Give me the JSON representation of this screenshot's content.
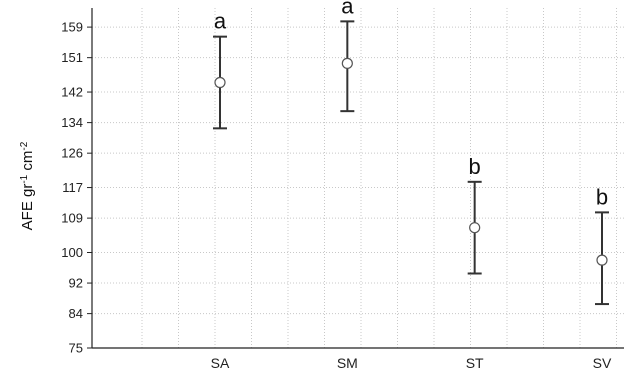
{
  "chart_data": {
    "type": "scatter",
    "subtype": "mean-with-error-bars",
    "title": "",
    "xlabel": "",
    "ylabel": {
      "base": "AFE gr",
      "sup1": "-1",
      "mid": " cm",
      "sup2": "-2"
    },
    "categories": [
      "SA",
      "SM",
      "ST",
      "SV"
    ],
    "series": [
      {
        "mean": [
          144.5,
          149.5,
          106.5,
          98.0
        ],
        "upper": [
          156.5,
          160.5,
          118.5,
          110.5
        ],
        "lower": [
          132.5,
          137.0,
          94.5,
          86.5
        ]
      }
    ],
    "annotations": [
      "a",
      "a",
      "b",
      "b"
    ],
    "yticks": [
      "159",
      "151",
      "142",
      "134",
      "126",
      "117",
      "109",
      "100",
      "92",
      "84",
      "75"
    ],
    "ylim": [
      75,
      164
    ],
    "grid": true,
    "colors": {
      "marker_fill": "#ffffff",
      "marker_stroke": "#555555",
      "errorbar": "#333333",
      "grid": "#c8c8c8",
      "axis": "#222222"
    }
  }
}
